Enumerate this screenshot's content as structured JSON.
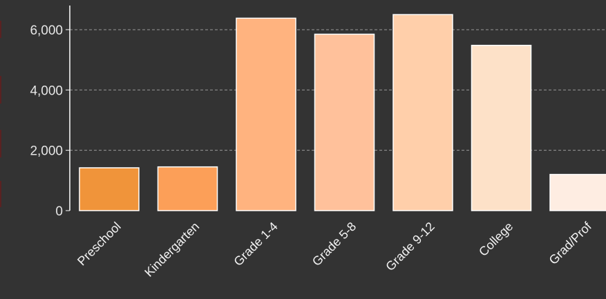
{
  "chart_data": {
    "type": "bar",
    "categories": [
      "Preschool",
      "Kindergarten",
      "Grade 1-4",
      "Grade 5-8",
      "Grade 9-12",
      "College",
      "Grad/Prof"
    ],
    "values": [
      1420,
      1450,
      6380,
      5850,
      6500,
      5480,
      1200
    ],
    "ylim": [
      0,
      6800
    ],
    "yticks": [
      0,
      2000,
      4000,
      6000
    ],
    "ytick_labels": [
      "0",
      "2,000",
      "4,000",
      "6,000"
    ],
    "grid": true,
    "legend": "none",
    "colors": [
      "#f0943a",
      "#fc9f58",
      "#ffb37f",
      "#ffc19b",
      "#ffcfaa",
      "#fde1c8",
      "#feede2"
    ],
    "background": "#333333",
    "grid_color": "#9a9a9a",
    "axis_color": "#ffffff",
    "bar_edge_color": "#ffffff"
  }
}
